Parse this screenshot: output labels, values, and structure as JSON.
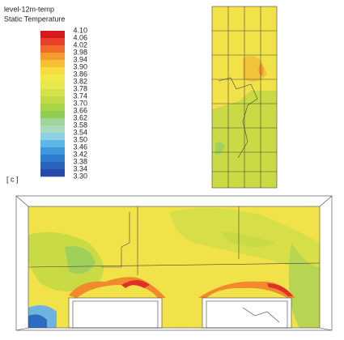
{
  "legend": {
    "title": "level-12m-temp",
    "subtitle": "Static Temperature",
    "unit": "[ c ]",
    "ticks": [
      "4.10",
      "4.06",
      "4.02",
      "3.98",
      "3.94",
      "3.90",
      "3.86",
      "3.82",
      "3.78",
      "3.74",
      "3.70",
      "3.66",
      "3.62",
      "3.58",
      "3.54",
      "3.50",
      "3.46",
      "3.42",
      "3.38",
      "3.34",
      "3.30"
    ]
  }
}
